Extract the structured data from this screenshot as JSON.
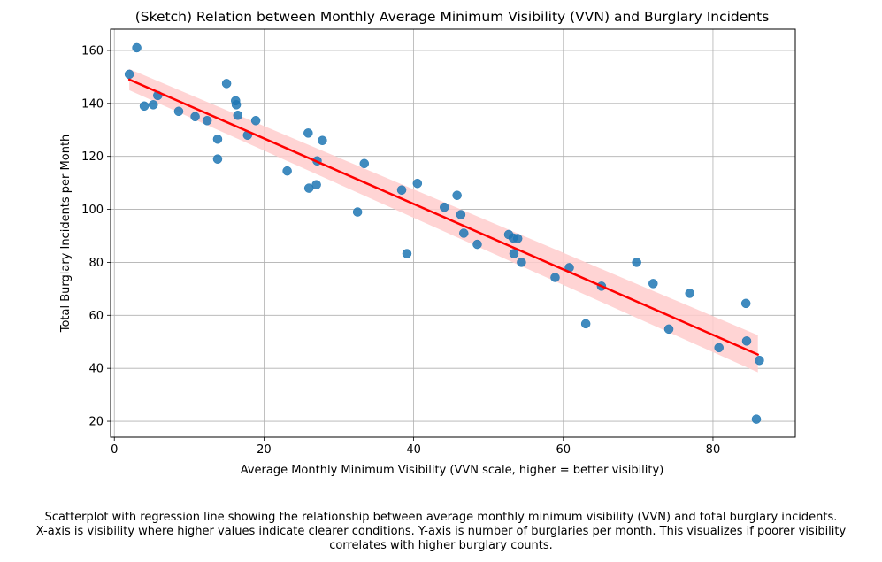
{
  "chart_data": {
    "type": "scatter",
    "title": "(Sketch) Relation between Monthly Average Minimum Visibility (VVN) and Burglary Incidents",
    "xlabel": "Average Monthly Minimum Visibility (VVN scale, higher = better visibility)",
    "ylabel": "Total Burglary Incidents per Month",
    "xlim": [
      -0.5,
      91
    ],
    "ylim": [
      14,
      168
    ],
    "xticks": [
      0,
      20,
      40,
      60,
      80
    ],
    "yticks": [
      20,
      40,
      60,
      80,
      100,
      120,
      140,
      160
    ],
    "grid": true,
    "point_color": "#1f77b4",
    "line_color": "#ff0000",
    "band_color": "#ffcccc",
    "points": [
      [
        2,
        151
      ],
      [
        3,
        161
      ],
      [
        4,
        139
      ],
      [
        5.2,
        139.5
      ],
      [
        5.8,
        143
      ],
      [
        8.6,
        137
      ],
      [
        10.8,
        135
      ],
      [
        12.4,
        133.5
      ],
      [
        13.8,
        126.5
      ],
      [
        13.8,
        119
      ],
      [
        15,
        147.5
      ],
      [
        16.2,
        141
      ],
      [
        16.3,
        139.5
      ],
      [
        16.5,
        135.5
      ],
      [
        17.8,
        128
      ],
      [
        18.9,
        133.5
      ],
      [
        23.1,
        114.5
      ],
      [
        25.9,
        128.8
      ],
      [
        26,
        108
      ],
      [
        27,
        109.3
      ],
      [
        27.1,
        118.3
      ],
      [
        27.8,
        126
      ],
      [
        32.5,
        99
      ],
      [
        33.4,
        117.3
      ],
      [
        38.4,
        107.3
      ],
      [
        39.1,
        83.3
      ],
      [
        40.5,
        109.8
      ],
      [
        44.1,
        100.8
      ],
      [
        45.8,
        105.3
      ],
      [
        46.3,
        98
      ],
      [
        46.7,
        91
      ],
      [
        48.5,
        86.8
      ],
      [
        52.7,
        90.5
      ],
      [
        53.3,
        89.2
      ],
      [
        53.9,
        89
      ],
      [
        53.4,
        83.3
      ],
      [
        54.4,
        80
      ],
      [
        58.9,
        74.3
      ],
      [
        60.8,
        78
      ],
      [
        63,
        56.8
      ],
      [
        65.1,
        71
      ],
      [
        69.8,
        80
      ],
      [
        72,
        72
      ],
      [
        74.1,
        54.8
      ],
      [
        76.9,
        68.3
      ],
      [
        80.8,
        47.8
      ],
      [
        84.4,
        64.5
      ],
      [
        84.5,
        50.3
      ],
      [
        85.8,
        20.8
      ],
      [
        86.2,
        43
      ]
    ],
    "regression": {
      "x": [
        2,
        86
      ],
      "y": [
        149,
        45.2
      ],
      "band_upper": [
        153,
        52.5
      ],
      "band_lower": [
        145,
        38.5
      ]
    }
  },
  "caption": {
    "line1": "Scatterplot with regression line showing the relationship between average monthly minimum visibility (VVN) and total burglary incidents.",
    "line2": "X-axis is visibility where higher values indicate clearer conditions. Y-axis is number of burglaries per month. This visualizes if poorer visibility",
    "line3": "correlates with higher burglary counts."
  }
}
